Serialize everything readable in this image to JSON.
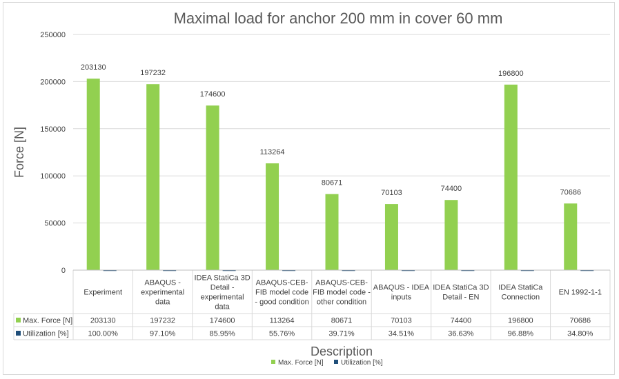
{
  "chart_data": {
    "type": "bar",
    "title": "Maximal load for anchor  200 mm in cover 60 mm",
    "xlabel": "Description",
    "ylabel": "Force [N]",
    "ylim": [
      0,
      250000
    ],
    "yticks": [
      0,
      50000,
      100000,
      150000,
      200000,
      250000
    ],
    "ytick_labels": [
      "0",
      "50000",
      "100000",
      "150000",
      "200000",
      "250000"
    ],
    "grid": true,
    "legend_position": "bottom",
    "categories": [
      [
        "Experiment"
      ],
      [
        "ABAQUS -",
        "experimental",
        "data"
      ],
      [
        "IDEA StatiCa 3D",
        "Detail -",
        "experimental",
        "data"
      ],
      [
        "ABAQUS-CEB-",
        "FIB model code",
        "- good condition"
      ],
      [
        "ABAQUS-CEB-",
        "FIB model code -",
        "other condition"
      ],
      [
        "ABAQUS - IDEA",
        "inputs"
      ],
      [
        "IDEA StatiCa 3D",
        "Detail - EN"
      ],
      [
        "IDEA StatiCa",
        "Connection"
      ],
      [
        "EN 1992-1-1"
      ]
    ],
    "series": [
      {
        "name": "Max. Force [N]",
        "color": "#92d050",
        "values": [
          203130,
          197232,
          174600,
          113264,
          80671,
          70103,
          74400,
          196800,
          70686
        ],
        "labels": [
          "203130",
          "197232",
          "174600",
          "113264",
          "80671",
          "70103",
          "74400",
          "196800",
          "70686"
        ],
        "table_labels": [
          "203130",
          "197232",
          "174600",
          "113264",
          "80671",
          "70103",
          "74400",
          "196800",
          "70686"
        ]
      },
      {
        "name": "Utilization [%]",
        "color": "#1f4e79",
        "values": [
          1.0,
          0.971,
          0.8595,
          0.5576,
          0.3971,
          0.3451,
          0.3663,
          0.9688,
          0.348
        ],
        "table_labels": [
          "100.00%",
          "97.10%",
          "85.95%",
          "55.76%",
          "39.71%",
          "34.51%",
          "36.63%",
          "96.88%",
          "34.80%"
        ]
      }
    ]
  }
}
